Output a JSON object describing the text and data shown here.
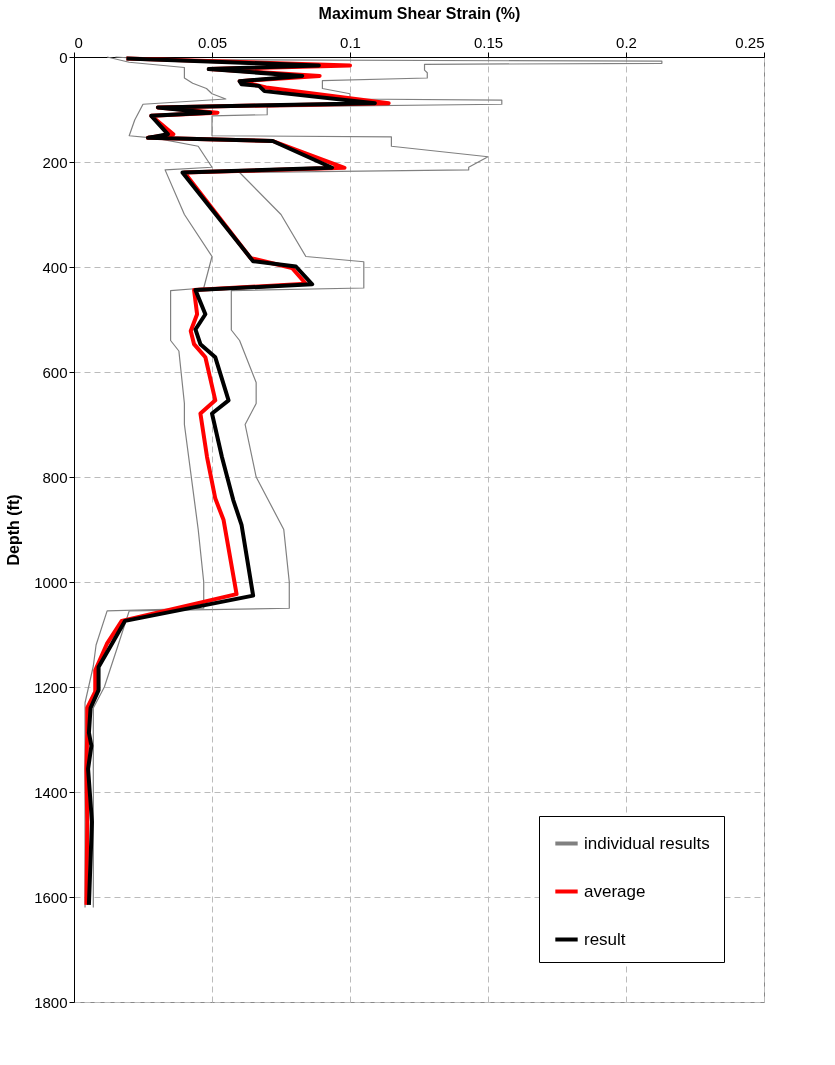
{
  "chart_data": {
    "type": "line",
    "xlabel": "Maximum Shear Strain (%)",
    "ylabel": "Depth (ft)",
    "xlim": [
      0,
      0.25
    ],
    "xticks": [
      0,
      0.05,
      0.1,
      0.15,
      0.2,
      0.25
    ],
    "ylim": [
      1800,
      0
    ],
    "yticks": [
      0,
      200,
      400,
      600,
      800,
      1000,
      1200,
      1400,
      1600,
      1800
    ],
    "grid": true,
    "legend": "bottom right",
    "series": [
      {
        "name": "individual results",
        "color": "#808080",
        "x": [
          0.015,
          0.03,
          0.213,
          0.213,
          0.127,
          0.127,
          0.128,
          0.128,
          0.09,
          0.09,
          0.1,
          0.1,
          0.155,
          0.155,
          0.07,
          0.07,
          0.05,
          0.05,
          0.115,
          0.115,
          0.15,
          0.143,
          0.143,
          0.06,
          0.075,
          0.084,
          0.105,
          0.105,
          0.057,
          0.057,
          0.06,
          0.066,
          0.066,
          0.062,
          0.066,
          0.076,
          0.078,
          0.078,
          0.02,
          0.016,
          0.011,
          0.007,
          0.007
        ],
        "values": [
          0,
          5,
          8,
          12,
          14,
          25,
          30,
          40,
          45,
          60,
          70,
          80,
          82,
          90,
          95,
          110,
          112,
          150,
          152,
          170,
          190,
          210,
          215,
          220,
          300,
          380,
          390,
          440,
          445,
          520,
          540,
          620,
          660,
          700,
          800,
          900,
          1000,
          1050,
          1055,
          1120,
          1200,
          1240,
          1620
        ]
      },
      {
        "color": "#808080",
        "x": [
          0.012,
          0.02,
          0.04,
          0.04,
          0.043,
          0.048,
          0.05,
          0.055,
          0.025,
          0.022,
          0.02,
          0.03,
          0.045,
          0.05,
          0.033,
          0.04,
          0.05,
          0.047,
          0.035,
          0.035,
          0.038,
          0.04,
          0.04,
          0.045,
          0.047,
          0.047,
          0.012,
          0.008,
          0.007,
          0.004,
          0.004
        ],
        "values": [
          0,
          10,
          20,
          40,
          50,
          60,
          70,
          80,
          90,
          120,
          150,
          155,
          170,
          210,
          215,
          300,
          380,
          440,
          445,
          540,
          560,
          660,
          700,
          900,
          1000,
          1050,
          1055,
          1120,
          1160,
          1230,
          1620
        ]
      },
      {
        "name": "average",
        "color": "#ff0000",
        "x": [
          0.019,
          0.1,
          0.049,
          0.089,
          0.06,
          0.0696,
          0.114,
          0.0304,
          0.052,
          0.028,
          0.036,
          0.0268,
          0.072,
          0.098,
          0.04,
          0.064,
          0.079,
          0.084,
          0.0435,
          0.0446,
          0.0423,
          0.0435,
          0.0476,
          0.0512,
          0.0458,
          0.0482,
          0.0512,
          0.0542,
          0.0589,
          0.0173,
          0.0119,
          0.0077,
          0.0077,
          0.0048,
          0.0048,
          0.0045,
          0.0048,
          0.0045
        ],
        "values": [
          3,
          16,
          23,
          36,
          46,
          58,
          88,
          96,
          106,
          112,
          147,
          154,
          160,
          211,
          220,
          383,
          402,
          432,
          444,
          490,
          522,
          547,
          572,
          654,
          679,
          762,
          841,
          882,
          1023,
          1074,
          1118,
          1168,
          1209,
          1240,
          1287,
          1356,
          1457,
          1615
        ]
      },
      {
        "name": "result",
        "color": "#000000",
        "x": [
          0.019,
          0.0887,
          0.0488,
          0.0827,
          0.06,
          0.0607,
          0.067,
          0.069,
          0.109,
          0.0304,
          0.0494,
          0.028,
          0.034,
          0.0268,
          0.072,
          0.0935,
          0.0393,
          0.0649,
          0.0804,
          0.0863,
          0.044,
          0.0476,
          0.044,
          0.0458,
          0.0512,
          0.056,
          0.05,
          0.0536,
          0.0577,
          0.0607,
          0.0649,
          0.0185,
          0.0137,
          0.0089,
          0.0089,
          0.006,
          0.0054,
          0.0063,
          0.0051,
          0.0065,
          0.0054
        ],
        "values": [
          3,
          16,
          23,
          36,
          46,
          52,
          55,
          65,
          88,
          96,
          106,
          112,
          147,
          154,
          160,
          211,
          220,
          389,
          399,
          433,
          444,
          490,
          519,
          547,
          572,
          654,
          679,
          762,
          844,
          891,
          1026,
          1074,
          1118,
          1162,
          1206,
          1240,
          1287,
          1312,
          1356,
          1457,
          1615
        ]
      }
    ]
  }
}
